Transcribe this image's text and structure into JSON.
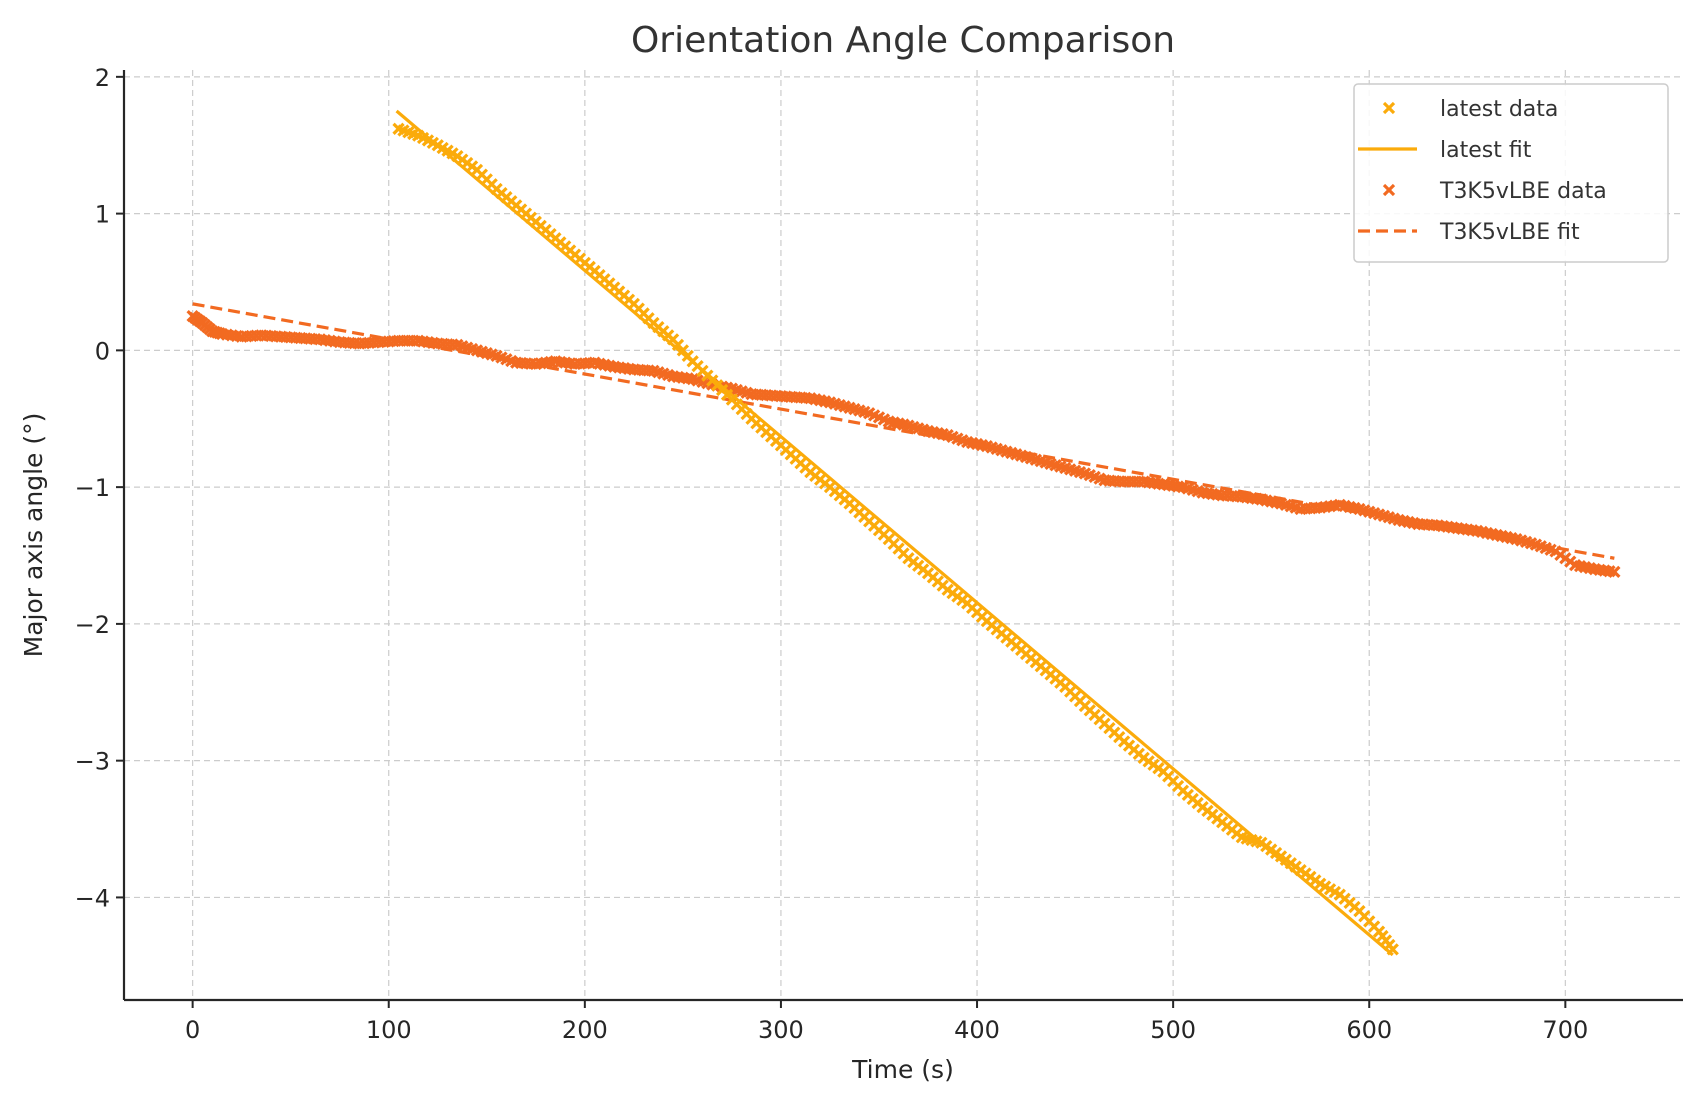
{
  "chart_data": {
    "type": "scatter",
    "title": "Orientation Angle Comparison",
    "xlabel": "Time (s)",
    "ylabel": "Major axis angle (°)",
    "xlim": [
      -35,
      760
    ],
    "ylim": [
      -4.75,
      2.05
    ],
    "xticks": [
      0,
      100,
      200,
      300,
      400,
      500,
      600,
      700
    ],
    "yticks": [
      2,
      1,
      0,
      -1,
      -2,
      -3,
      -4
    ],
    "ytick_labels": [
      "2",
      "1",
      "0",
      "−1",
      "−2",
      "−3",
      "−4"
    ],
    "grid": true,
    "legend_position": "top-right",
    "series": [
      {
        "name": "latest data",
        "kind": "scatter",
        "marker": "x",
        "color": "#fbab0b",
        "x": [
          105,
          115,
          125,
          135,
          145,
          155,
          165,
          175,
          185,
          195,
          205,
          215,
          225,
          235,
          245,
          255,
          265,
          275,
          285,
          295,
          305,
          315,
          325,
          335,
          345,
          355,
          365,
          375,
          385,
          395,
          405,
          415,
          425,
          435,
          445,
          455,
          465,
          475,
          485,
          495,
          505,
          515,
          525,
          535,
          545,
          555,
          565,
          575,
          585,
          595,
          605,
          612
        ],
        "y": [
          1.62,
          1.57,
          1.5,
          1.42,
          1.32,
          1.18,
          1.06,
          0.94,
          0.82,
          0.7,
          0.58,
          0.46,
          0.34,
          0.2,
          0.08,
          -0.08,
          -0.22,
          -0.36,
          -0.5,
          -0.63,
          -0.76,
          -0.89,
          -1.0,
          -1.12,
          -1.25,
          -1.38,
          -1.52,
          -1.63,
          -1.75,
          -1.85,
          -1.98,
          -2.1,
          -2.22,
          -2.34,
          -2.46,
          -2.6,
          -2.73,
          -2.86,
          -2.98,
          -3.08,
          -3.22,
          -3.34,
          -3.45,
          -3.56,
          -3.6,
          -3.7,
          -3.8,
          -3.9,
          -3.98,
          -4.1,
          -4.25,
          -4.38
        ]
      },
      {
        "name": "latest fit",
        "kind": "line",
        "style": "solid",
        "color": "#fbab0b",
        "x": [
          104,
          612
        ],
        "y": [
          1.75,
          -4.42
        ]
      },
      {
        "name": "T3K5vLBE data",
        "kind": "scatter",
        "marker": "x",
        "color": "#f26a21",
        "x": [
          0,
          5,
          10,
          15,
          25,
          35,
          45,
          55,
          65,
          75,
          85,
          95,
          105,
          115,
          125,
          135,
          145,
          155,
          165,
          175,
          185,
          195,
          205,
          215,
          225,
          235,
          245,
          255,
          265,
          275,
          285,
          295,
          305,
          315,
          325,
          335,
          345,
          355,
          365,
          375,
          385,
          395,
          405,
          415,
          425,
          435,
          445,
          455,
          465,
          475,
          485,
          495,
          505,
          515,
          525,
          535,
          545,
          555,
          565,
          575,
          585,
          595,
          605,
          615,
          625,
          635,
          645,
          655,
          665,
          675,
          685,
          695,
          705,
          715,
          725
        ],
        "y": [
          0.25,
          0.2,
          0.14,
          0.12,
          0.1,
          0.11,
          0.1,
          0.09,
          0.08,
          0.06,
          0.05,
          0.06,
          0.07,
          0.07,
          0.05,
          0.04,
          0.0,
          -0.04,
          -0.09,
          -0.1,
          -0.08,
          -0.1,
          -0.09,
          -0.12,
          -0.14,
          -0.15,
          -0.19,
          -0.21,
          -0.25,
          -0.28,
          -0.32,
          -0.33,
          -0.34,
          -0.35,
          -0.38,
          -0.42,
          -0.46,
          -0.52,
          -0.55,
          -0.59,
          -0.62,
          -0.67,
          -0.7,
          -0.74,
          -0.78,
          -0.82,
          -0.86,
          -0.9,
          -0.95,
          -0.96,
          -0.96,
          -0.98,
          -1.0,
          -1.04,
          -1.06,
          -1.07,
          -1.09,
          -1.12,
          -1.16,
          -1.15,
          -1.13,
          -1.16,
          -1.2,
          -1.24,
          -1.27,
          -1.28,
          -1.3,
          -1.32,
          -1.35,
          -1.38,
          -1.42,
          -1.47,
          -1.57,
          -1.6,
          -1.62
        ]
      },
      {
        "name": "T3K5vLBE fit",
        "kind": "line",
        "style": "dashed",
        "color": "#f26a21",
        "x": [
          0,
          725
        ],
        "y": [
          0.34,
          -1.52
        ]
      }
    ]
  }
}
